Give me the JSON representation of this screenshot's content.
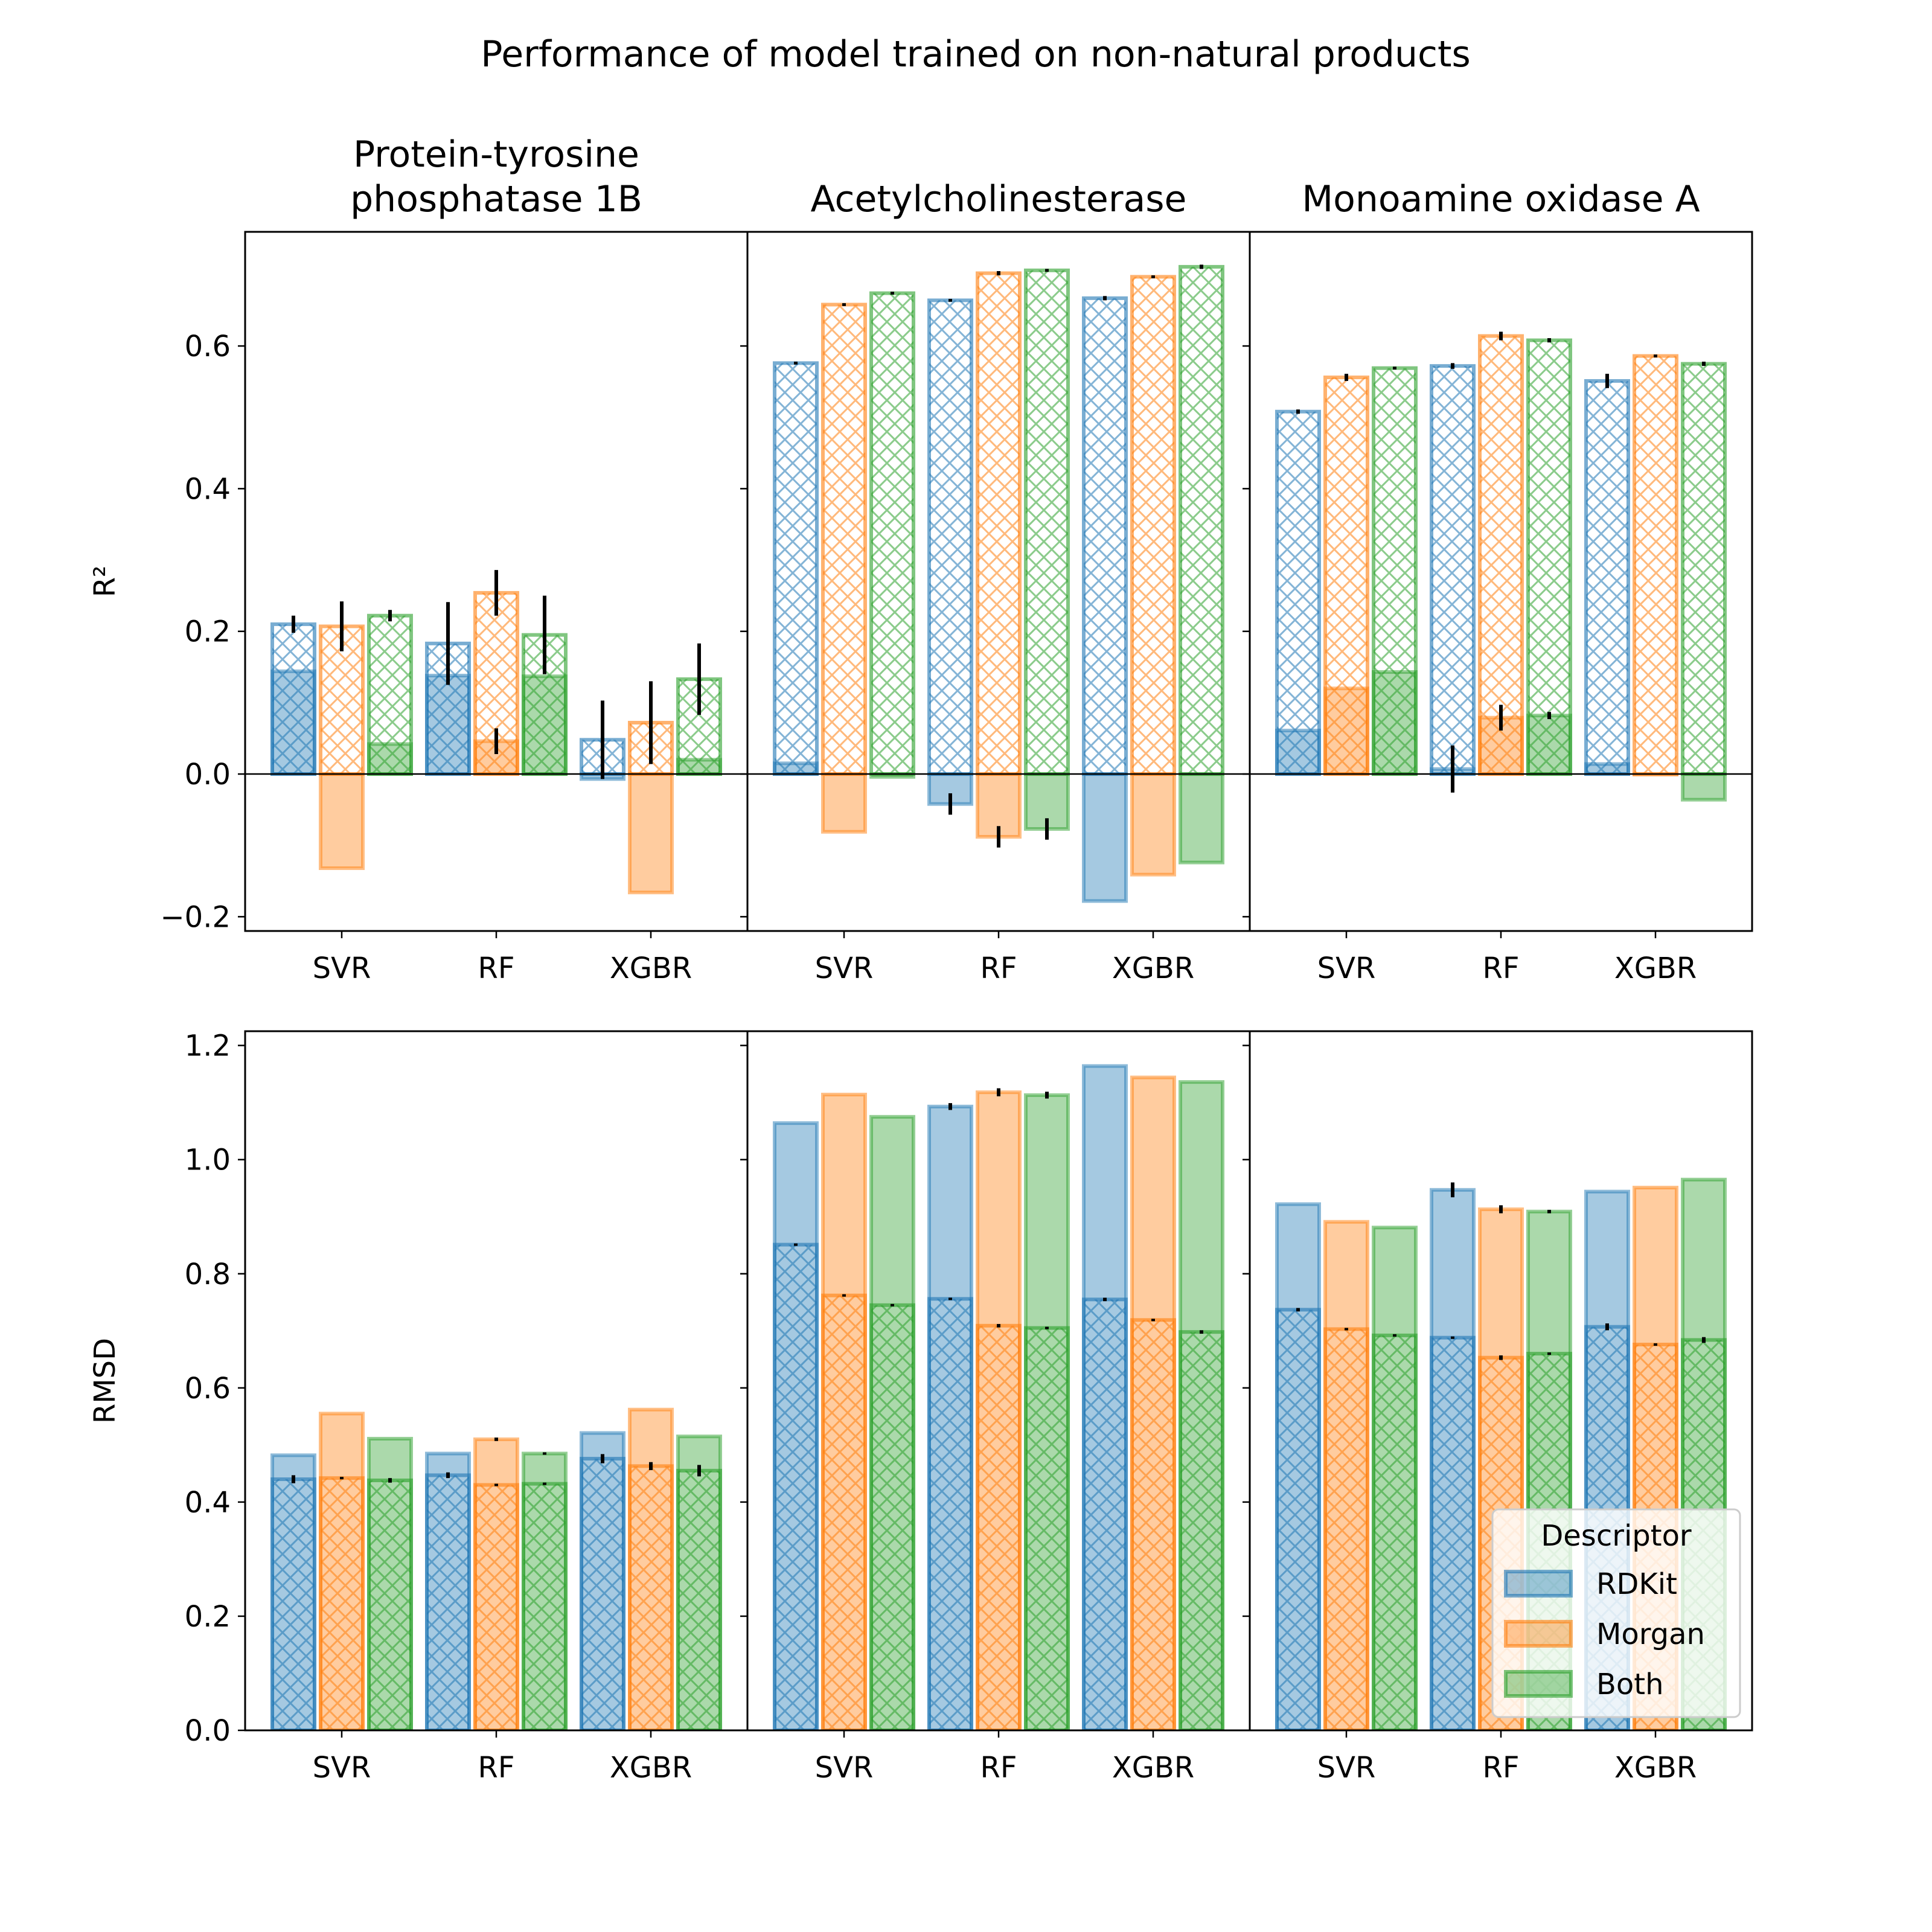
{
  "title": "Performance of model trained on non-natural products",
  "chart_data": {
    "type": "bar",
    "panel_titles": [
      [
        "Protein-tyrosine",
        "phosphatase 1B"
      ],
      [
        "Acetylcholinesterase"
      ],
      [
        "Monoamine oxidase A"
      ]
    ],
    "categories": [
      "SVR",
      "RF",
      "XGBR"
    ],
    "legend": {
      "title": "Descriptor",
      "position": "lower right",
      "entries": [
        "RDKit",
        "Morgan",
        "Both"
      ]
    },
    "colors": {
      "RDKit": "#1f77b4",
      "Morgan": "#ff7f0e",
      "Both": "#2ca02c"
    },
    "encoding": "hatched bars = one evaluation; solid translucent bars = other evaluation; black vertical lines = error bars",
    "rows": [
      {
        "ylabel": "R²",
        "ylim": [
          -0.22,
          0.76
        ],
        "yticks": [
          -0.2,
          0.0,
          0.2,
          0.4,
          0.6
        ],
        "ytick_labels": [
          "−0.2",
          "0.0",
          "0.2",
          "0.4",
          "0.6"
        ],
        "zero_line": true,
        "panels": [
          {
            "hatched": {
              "RDKit": [
                0.21,
                0.183,
                0.048
              ],
              "Morgan": [
                0.207,
                0.254,
                0.072
              ],
              "Both": [
                0.222,
                0.195,
                0.133
              ]
            },
            "hatched_err": {
              "RDKit": [
                0.012,
                0.058,
                0.055
              ],
              "Morgan": [
                0.035,
                0.032,
                0.058
              ],
              "Both": [
                0.008,
                0.055,
                0.05
              ]
            },
            "solid": {
              "RDKit": [
                0.144,
                0.138,
                -0.007
              ],
              "Morgan": [
                -0.132,
                0.046,
                -0.166
              ],
              "Both": [
                0.042,
                0.137,
                0.02
              ]
            },
            "solid_err": {
              "RDKit": [
                null,
                null,
                null
              ],
              "Morgan": [
                null,
                0.018,
                null
              ],
              "Both": [
                null,
                null,
                null
              ]
            }
          },
          {
            "hatched": {
              "RDKit": [
                0.576,
                0.664,
                0.667
              ],
              "Morgan": [
                0.658,
                0.702,
                0.697
              ],
              "Both": [
                0.674,
                0.706,
                0.711
              ]
            },
            "hatched_err": {
              "RDKit": [
                0.002,
                0.002,
                0.003
              ],
              "Morgan": [
                0.002,
                0.003,
                0.002
              ],
              "Both": [
                0.002,
                0.002,
                0.003
              ]
            },
            "solid": {
              "RDKit": [
                0.015,
                -0.042,
                -0.178
              ],
              "Morgan": [
                -0.081,
                -0.088,
                -0.141
              ],
              "Both": [
                -0.004,
                -0.077,
                -0.124
              ]
            },
            "solid_err": {
              "RDKit": [
                null,
                0.015,
                null
              ],
              "Morgan": [
                null,
                0.015,
                null
              ],
              "Both": [
                null,
                0.015,
                null
              ]
            }
          },
          {
            "hatched": {
              "RDKit": [
                0.508,
                0.572,
                0.551
              ],
              "Morgan": [
                0.556,
                0.614,
                0.586
              ],
              "Both": [
                0.569,
                0.608,
                0.575
              ]
            },
            "hatched_err": {
              "RDKit": [
                0.003,
                0.004,
                0.01
              ],
              "Morgan": [
                0.005,
                0.006,
                0.002
              ],
              "Both": [
                0.002,
                0.003,
                0.003
              ]
            },
            "solid": {
              "RDKit": [
                0.061,
                0.007,
                0.014
              ],
              "Morgan": [
                0.12,
                0.079,
                0.0
              ],
              "Both": [
                0.143,
                0.082,
                -0.036
              ]
            },
            "solid_err": {
              "RDKit": [
                null,
                0.033,
                null
              ],
              "Morgan": [
                null,
                0.018,
                null
              ],
              "Both": [
                null,
                0.005,
                null
              ]
            }
          }
        ]
      },
      {
        "ylabel": "RMSD",
        "ylim": [
          0.0,
          1.225
        ],
        "yticks": [
          0.0,
          0.2,
          0.4,
          0.6,
          0.8,
          1.0,
          1.2
        ],
        "ytick_labels": [
          "0.0",
          "0.2",
          "0.4",
          "0.6",
          "0.8",
          "1.0",
          "1.2"
        ],
        "zero_line": false,
        "panels": [
          {
            "hatched": {
              "RDKit": [
                0.44,
                0.447,
                0.476
              ],
              "Morgan": [
                0.442,
                0.43,
                0.463
              ],
              "Both": [
                0.438,
                0.432,
                0.455
              ]
            },
            "hatched_err": {
              "RDKit": [
                0.007,
                0.005,
                0.008
              ],
              "Morgan": [
                0.002,
                0.002,
                0.007
              ],
              "Both": [
                0.004,
                0.002,
                0.01
              ]
            },
            "solid": {
              "RDKit": [
                0.482,
                0.485,
                0.521
              ],
              "Morgan": [
                0.555,
                0.51,
                0.562
              ],
              "Both": [
                0.511,
                0.485,
                0.515
              ]
            },
            "solid_err": {
              "RDKit": [
                null,
                null,
                null
              ],
              "Morgan": [
                null,
                0.003,
                null
              ],
              "Both": [
                null,
                0.002,
                null
              ]
            }
          },
          {
            "hatched": {
              "RDKit": [
                0.851,
                0.756,
                0.755
              ],
              "Morgan": [
                0.762,
                0.709,
                0.719
              ],
              "Both": [
                0.745,
                0.705,
                0.698
              ]
            },
            "hatched_err": {
              "RDKit": [
                0.001,
                0.002,
                0.003
              ],
              "Morgan": [
                0.001,
                0.003,
                0.002
              ],
              "Both": [
                0.001,
                0.002,
                0.003
              ]
            },
            "solid": {
              "RDKit": [
                1.064,
                1.093,
                1.164
              ],
              "Morgan": [
                1.114,
                1.118,
                1.144
              ],
              "Both": [
                1.075,
                1.113,
                1.136
              ]
            },
            "solid_err": {
              "RDKit": [
                null,
                0.006,
                null
              ],
              "Morgan": [
                null,
                0.007,
                null
              ],
              "Both": [
                null,
                0.006,
                null
              ]
            }
          },
          {
            "hatched": {
              "RDKit": [
                0.737,
                0.688,
                0.707
              ],
              "Morgan": [
                0.703,
                0.653,
                0.676
              ],
              "Both": [
                0.692,
                0.66,
                0.684
              ]
            },
            "hatched_err": {
              "RDKit": [
                0.003,
                0.002,
                0.006
              ],
              "Morgan": [
                0.002,
                0.004,
                0.002
              ],
              "Both": [
                0.001,
                0.002,
                0.005
              ]
            },
            "solid": {
              "RDKit": [
                0.922,
                0.947,
                0.944
              ],
              "Morgan": [
                0.891,
                0.913,
                0.951
              ],
              "Both": [
                0.881,
                0.909,
                0.965
              ]
            },
            "solid_err": {
              "RDKit": [
                null,
                0.013,
                null
              ],
              "Morgan": [
                null,
                0.007,
                null
              ],
              "Both": [
                null,
                0.003,
                null
              ]
            }
          }
        ]
      }
    ]
  }
}
